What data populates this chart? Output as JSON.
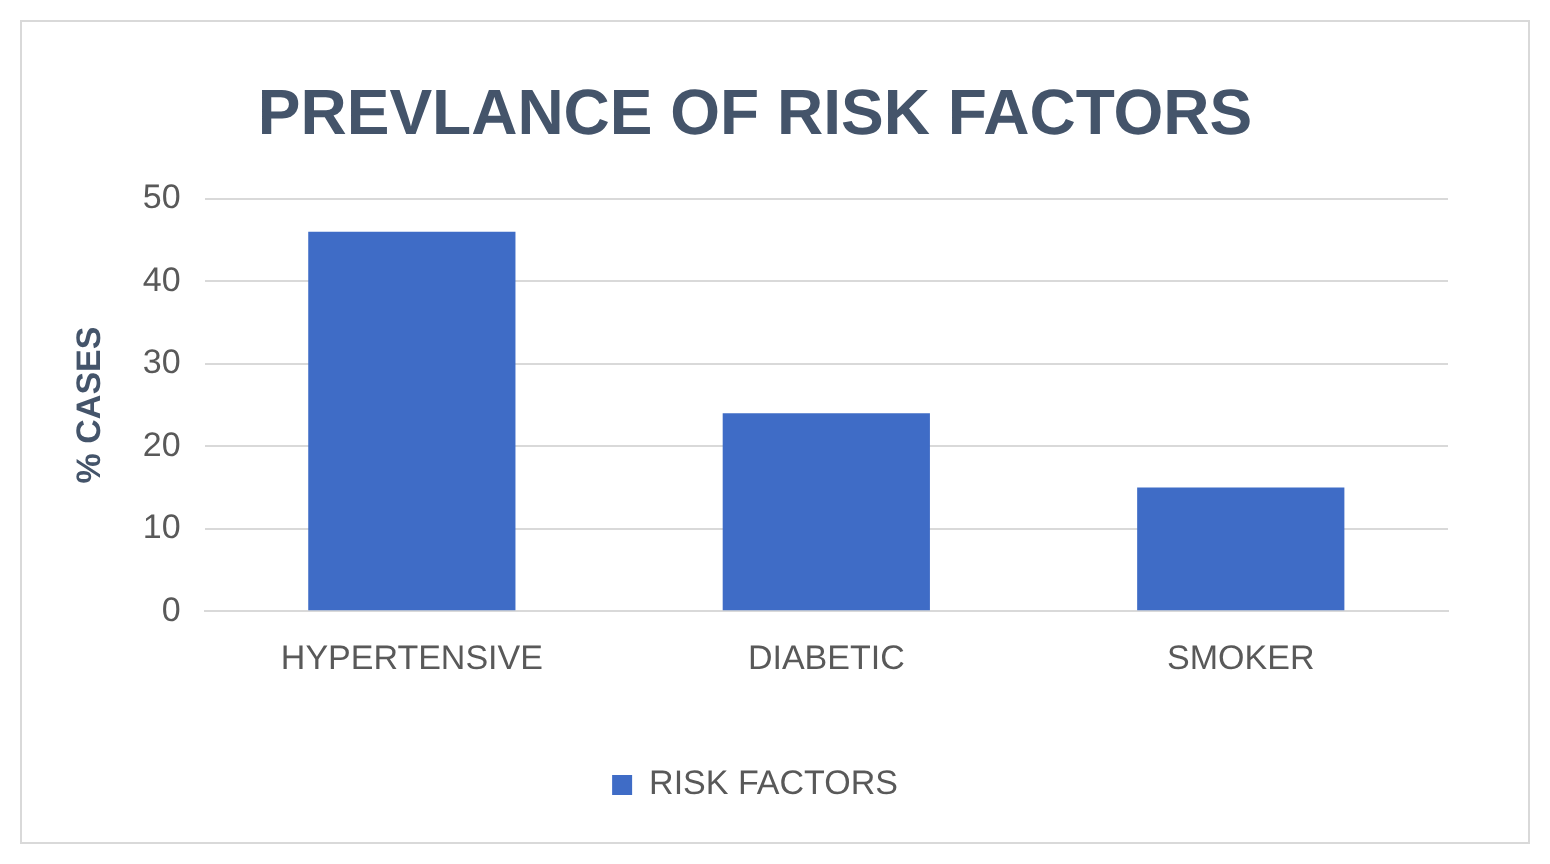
{
  "chart_data": {
    "type": "bar",
    "title": "PREVLANCE OF RISK FACTORS",
    "ylabel": "% CASES",
    "categories": [
      "HYPERTENSIVE",
      "DIABETIC",
      "SMOKER"
    ],
    "series": [
      {
        "name": "RISK FACTORS",
        "color": "#3f6cc6",
        "values": [
          46,
          24,
          15
        ]
      }
    ],
    "ylim": [
      0,
      50
    ],
    "yticks": [
      0,
      10,
      20,
      30,
      40,
      50
    ],
    "grid": "y",
    "legend": "bottom"
  }
}
